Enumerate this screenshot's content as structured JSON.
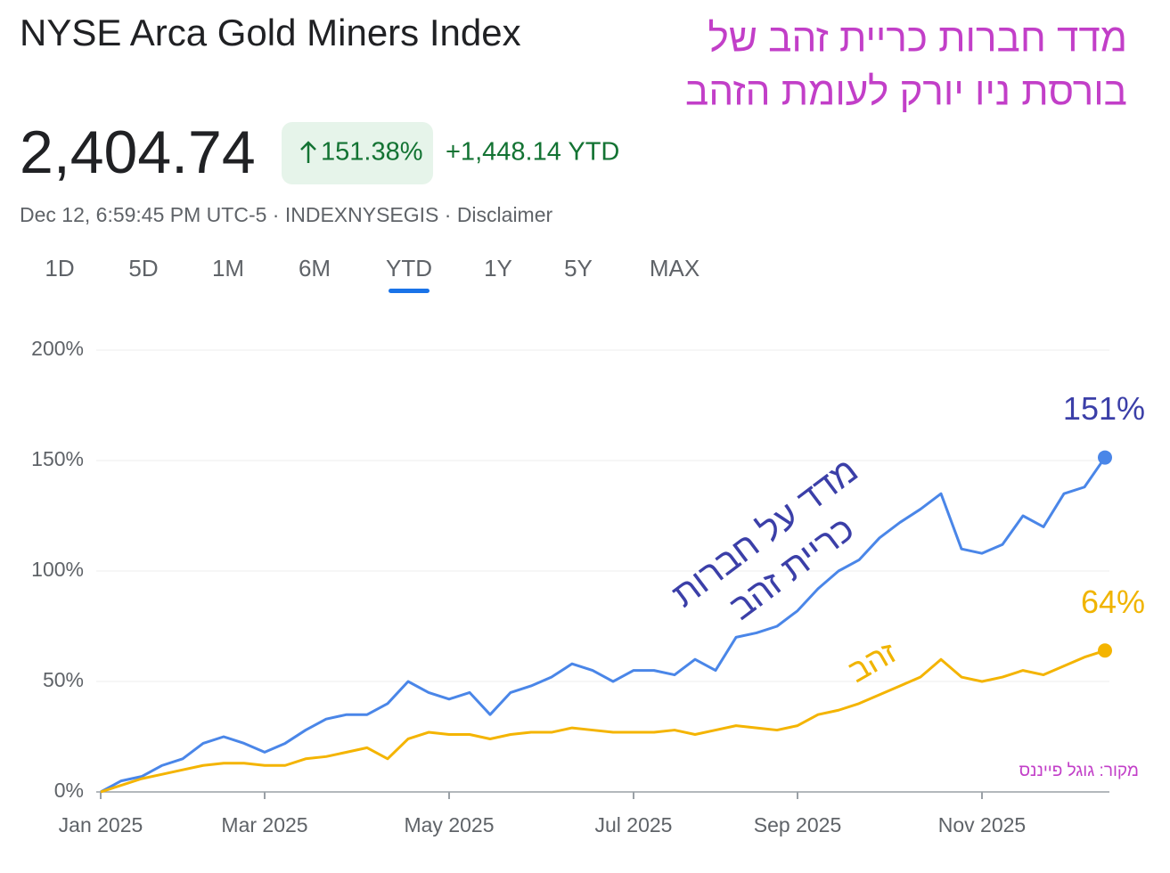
{
  "header": {
    "title": "NYSE Arca Gold Miners Index",
    "price": "2,404.74",
    "change_percent": "151.38%",
    "change_absolute": "+1,448.14 YTD",
    "meta": "Dec 12, 6:59:45 PM UTC-5 · INDEXNYSEGIS · Disclaimer"
  },
  "tabs": [
    "1D",
    "5D",
    "1M",
    "6M",
    "YTD",
    "1Y",
    "5Y",
    "MAX"
  ],
  "selected_tab": "YTD",
  "annotation_title": [
    "מדד חברות כריית זהב של",
    "בורסת ניו יורק לעומת הזהב"
  ],
  "source": "מקור: גוגל פייננס",
  "chart_data": {
    "type": "line",
    "categories": [
      "Jan 2025",
      null,
      null,
      null,
      null,
      null,
      null,
      null,
      "Mar 2025",
      null,
      null,
      null,
      null,
      null,
      null,
      null,
      null,
      "May 2025",
      null,
      null,
      null,
      null,
      null,
      null,
      null,
      null,
      "Jul 2025",
      null,
      null,
      null,
      null,
      null,
      null,
      null,
      "Sep 2025",
      null,
      null,
      null,
      null,
      null,
      null,
      null,
      null,
      "Nov 2025",
      null,
      null,
      null,
      null,
      null,
      null
    ],
    "series": [
      {
        "name_lines": [
          "מדד על חברות",
          "כריית זהב"
        ],
        "color": "#4a86e8",
        "values": [
          0,
          5,
          7,
          12,
          15,
          22,
          25,
          22,
          18,
          22,
          28,
          33,
          35,
          35,
          40,
          50,
          45,
          42,
          45,
          35,
          45,
          48,
          52,
          58,
          55,
          50,
          55,
          55,
          53,
          60,
          55,
          70,
          72,
          75,
          82,
          92,
          100,
          105,
          115,
          122,
          128,
          135,
          110,
          108,
          112,
          125,
          120,
          135,
          138,
          151.38
        ],
        "value_labels": [
          null,
          null,
          null,
          null,
          null,
          null,
          null,
          null,
          null,
          null,
          null,
          null,
          null,
          null,
          null,
          null,
          null,
          null,
          null,
          null,
          null,
          null,
          null,
          null,
          null,
          null,
          null,
          null,
          null,
          null,
          null,
          null,
          null,
          null,
          null,
          null,
          null,
          null,
          null,
          null,
          null,
          null,
          null,
          null,
          null,
          null,
          null,
          null,
          null,
          "151%"
        ]
      },
      {
        "name": "זהב",
        "color": "#f4b400",
        "values": [
          0,
          3,
          6,
          8,
          10,
          12,
          13,
          13,
          12,
          12,
          15,
          16,
          18,
          20,
          15,
          24,
          27,
          26,
          26,
          24,
          26,
          27,
          27,
          29,
          28,
          27,
          27,
          27,
          28,
          26,
          28,
          30,
          29,
          28,
          30,
          35,
          37,
          40,
          44,
          48,
          52,
          60,
          52,
          50,
          52,
          55,
          53,
          57,
          61,
          64
        ],
        "value_labels": [
          null,
          null,
          null,
          null,
          null,
          null,
          null,
          null,
          null,
          null,
          null,
          null,
          null,
          null,
          null,
          null,
          null,
          null,
          null,
          null,
          null,
          null,
          null,
          null,
          null,
          null,
          null,
          null,
          null,
          null,
          null,
          null,
          null,
          null,
          null,
          null,
          null,
          null,
          null,
          null,
          null,
          null,
          null,
          null,
          null,
          null,
          null,
          null,
          null,
          "64%"
        ]
      }
    ],
    "ylim": [
      0,
      200
    ],
    "yticks": [
      {
        "value": 0,
        "label": "0%"
      },
      {
        "value": 50,
        "label": "50%"
      },
      {
        "value": 100,
        "label": "100%"
      },
      {
        "value": 150,
        "label": "150%"
      },
      {
        "value": 200,
        "label": "200%"
      }
    ],
    "grid": true
  }
}
